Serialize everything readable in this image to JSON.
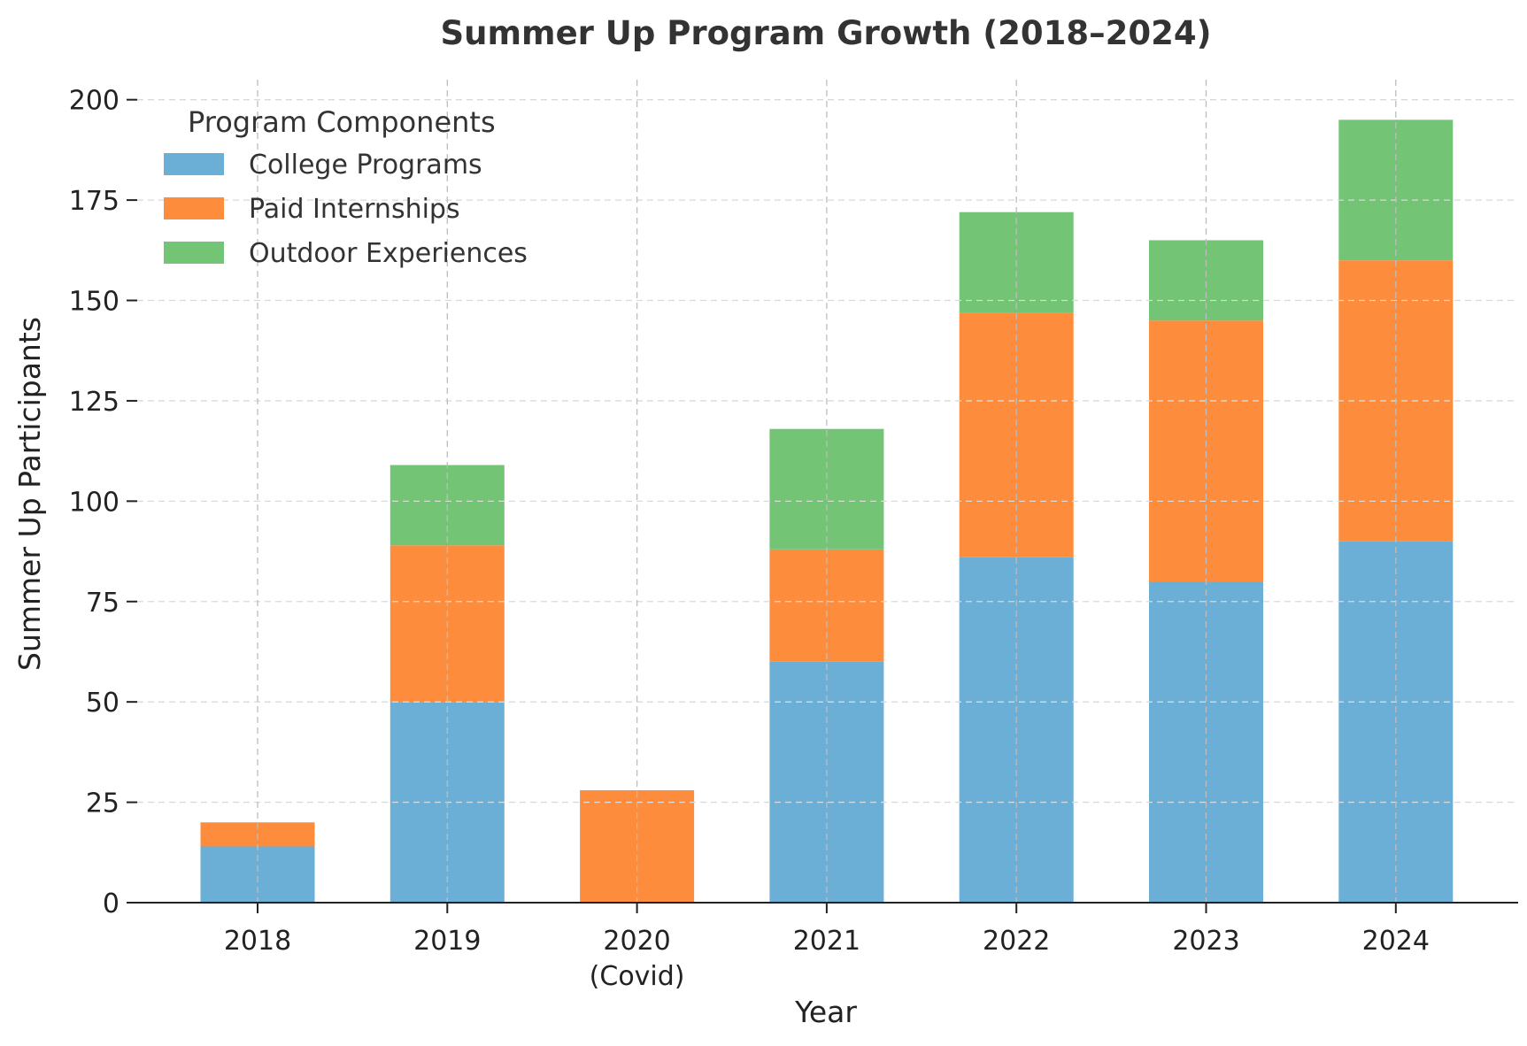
{
  "chart_data": {
    "type": "bar",
    "stacked": true,
    "title": "Summer Up Program Growth (2018–2024)",
    "xlabel": "Year",
    "ylabel": "Summer Up Participants",
    "ylim": [
      0,
      205
    ],
    "yticks": [
      0,
      25,
      50,
      75,
      100,
      125,
      150,
      175,
      200
    ],
    "categories": [
      {
        "label": "2018",
        "sublabel": ""
      },
      {
        "label": "2019",
        "sublabel": ""
      },
      {
        "label": "2020",
        "sublabel": "(Covid)"
      },
      {
        "label": "2021",
        "sublabel": ""
      },
      {
        "label": "2022",
        "sublabel": ""
      },
      {
        "label": "2023",
        "sublabel": ""
      },
      {
        "label": "2024",
        "sublabel": ""
      }
    ],
    "legend": {
      "title": "Program Components",
      "position": "top-left"
    },
    "grid": true,
    "series": [
      {
        "name": "College Programs",
        "color": "#6baed6",
        "values": [
          14,
          50,
          0,
          60,
          86,
          80,
          90
        ]
      },
      {
        "name": "Paid Internships",
        "color": "#fd8d3c",
        "values": [
          6,
          39,
          28,
          28,
          61,
          65,
          70
        ]
      },
      {
        "name": "Outdoor Experiences",
        "color": "#74c476",
        "values": [
          0,
          20,
          0,
          30,
          25,
          20,
          35
        ]
      }
    ]
  }
}
